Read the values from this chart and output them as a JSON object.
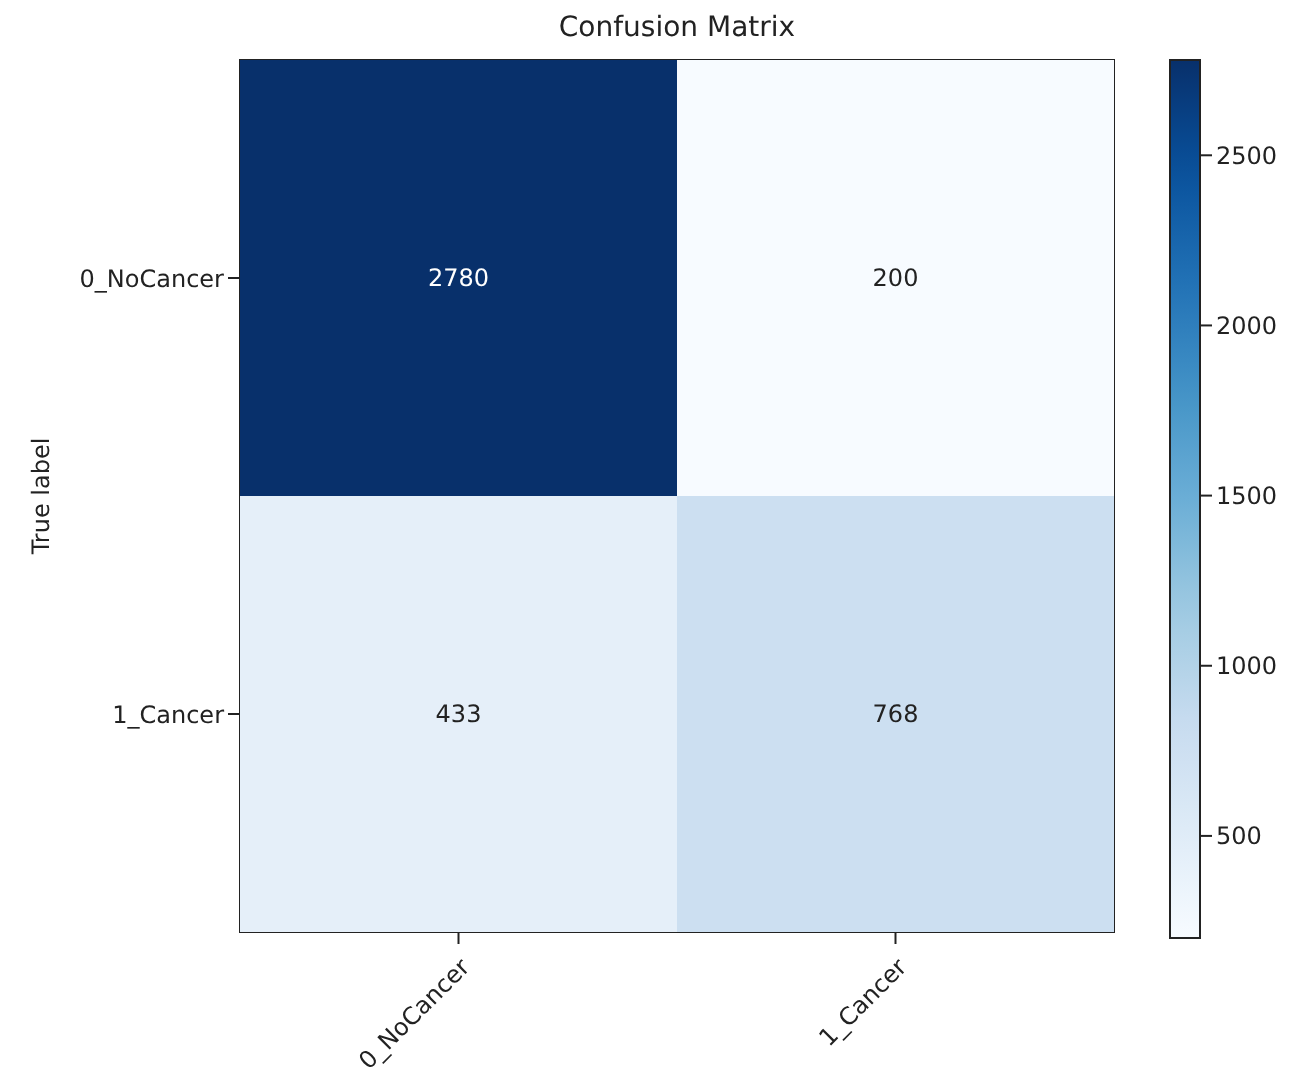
{
  "chart_data": {
    "type": "heatmap",
    "title": "Confusion Matrix",
    "ylabel": "True label",
    "categories": [
      "0_NoCancer",
      "1_Cancer"
    ],
    "y_categories": [
      "0_NoCancer",
      "1_Cancer"
    ],
    "cells": [
      [
        2780,
        200
      ],
      [
        433,
        768
      ]
    ],
    "clim": [
      200,
      2780
    ],
    "cticks": [
      500,
      1000,
      1500,
      2000,
      2500
    ],
    "data_labels": true
  }
}
